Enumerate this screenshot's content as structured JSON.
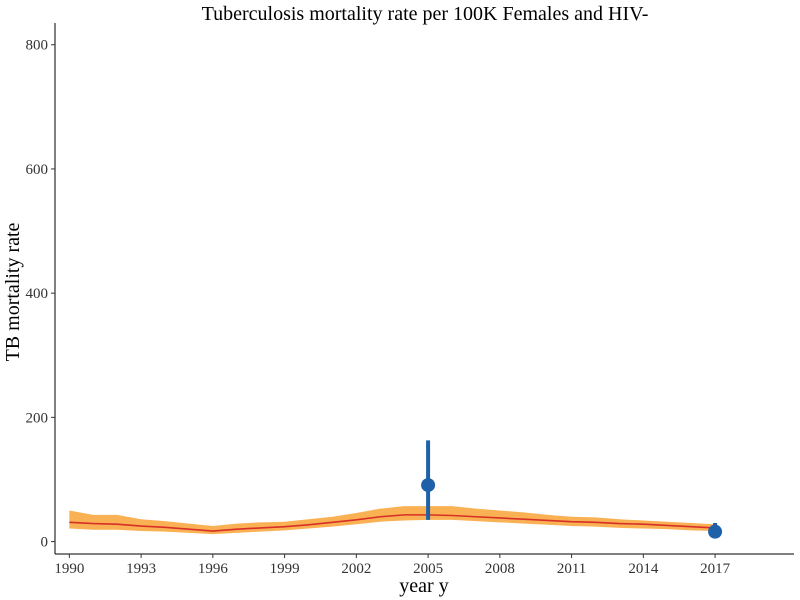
{
  "chart_data": {
    "type": "line",
    "title": "Tuberculosis mortality rate per 100K Females and HIV-",
    "xlabel": "year y",
    "ylabel": "TB mortality rate",
    "xlim": [
      1989.4,
      2020.3
    ],
    "ylim": [
      -20,
      835
    ],
    "x_ticks": [
      1990,
      1993,
      1996,
      1999,
      2002,
      2005,
      2008,
      2011,
      2014,
      2017
    ],
    "y_ticks": [
      0,
      200,
      400,
      600,
      800
    ],
    "grid": false,
    "series": [
      {
        "kind": "ribbon-line",
        "x": [
          1990,
          1991,
          1992,
          1993,
          1994,
          1995,
          1996,
          1997,
          1998,
          1999,
          2000,
          2001,
          2002,
          2003,
          2004,
          2005,
          2006,
          2007,
          2008,
          2009,
          2010,
          2011,
          2012,
          2013,
          2014,
          2015,
          2016,
          2017
        ],
        "values": [
          31,
          29,
          28,
          25,
          23,
          20,
          17,
          20,
          22,
          24,
          27,
          31,
          35,
          40,
          43,
          43,
          42,
          40,
          38,
          36,
          34,
          32,
          31,
          29,
          28,
          26,
          24,
          22
        ],
        "lower": [
          21,
          19,
          19,
          17,
          16,
          14,
          12,
          14,
          16,
          18,
          21,
          24,
          28,
          32,
          34,
          35,
          35,
          33,
          31,
          29,
          27,
          25,
          24,
          22,
          21,
          20,
          18,
          17
        ],
        "upper": [
          50,
          43,
          43,
          36,
          33,
          29,
          25,
          29,
          31,
          32,
          36,
          40,
          46,
          53,
          57,
          57,
          57,
          53,
          50,
          47,
          43,
          40,
          39,
          36,
          34,
          32,
          30,
          28
        ],
        "line_color": "#d73027",
        "band_color": "#f9a940"
      },
      {
        "kind": "point-errorbar",
        "x": [
          2005,
          2017
        ],
        "values": [
          91,
          16
        ],
        "lower": [
          35,
          12
        ],
        "upper": [
          163,
          30
        ],
        "color": "#1f61a8"
      }
    ]
  }
}
